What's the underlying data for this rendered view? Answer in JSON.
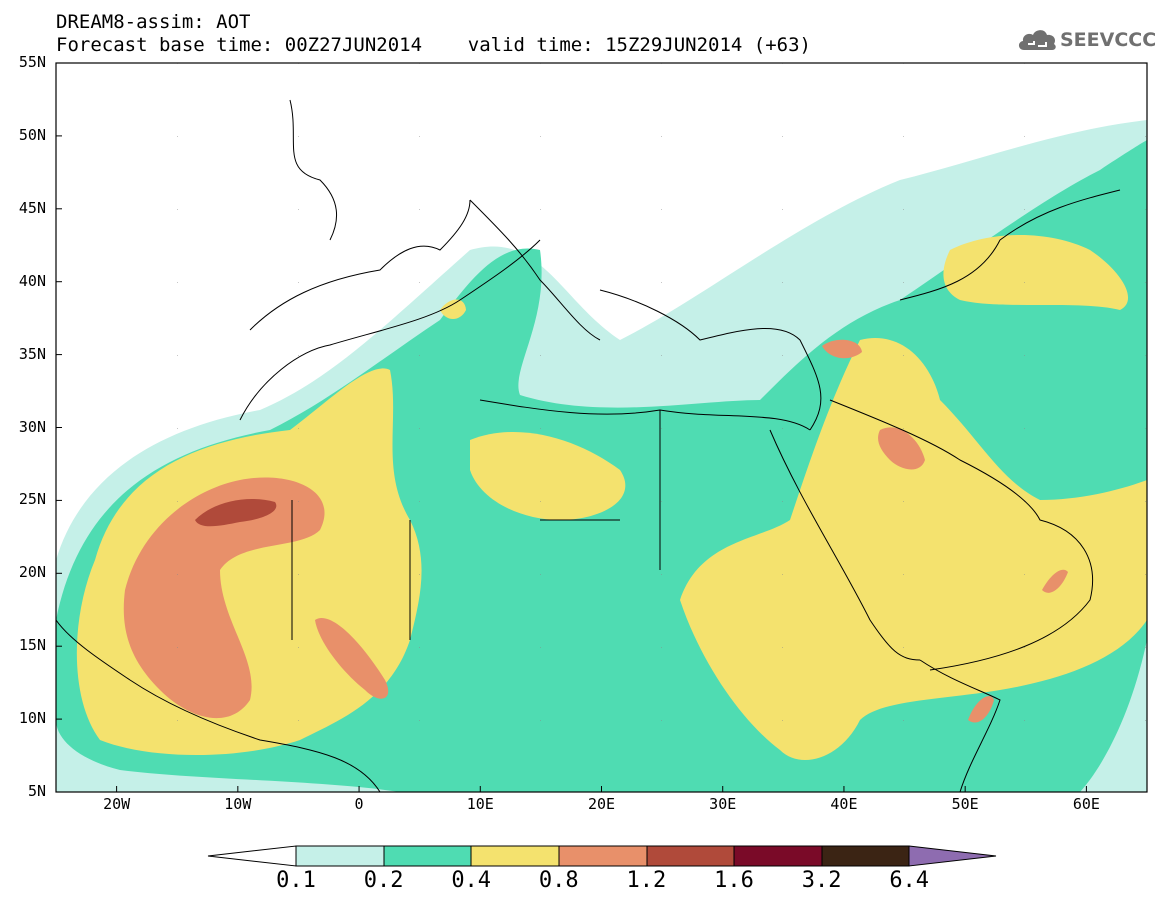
{
  "header": {
    "line1": "DREAM8-assim: AOT",
    "line2": "Forecast base time: 00Z27JUN2014    valid time: 15Z29JUN2014 (+63)"
  },
  "logo": {
    "text": "SEEVCCC",
    "icon": "cloud-icon"
  },
  "map": {
    "lat_labels": [
      "55N",
      "50N",
      "45N",
      "40N",
      "35N",
      "30N",
      "25N",
      "20N",
      "15N",
      "10N",
      "5N"
    ],
    "lon_labels": [
      "20W",
      "10W",
      "0",
      "10E",
      "20E",
      "30E",
      "40E",
      "50E",
      "60E"
    ],
    "lon_range": [
      -25,
      65
    ],
    "lat_range": [
      5,
      55
    ]
  },
  "colorbar": {
    "labels": [
      "0.1",
      "0.2",
      "0.4",
      "0.8",
      "1.2",
      "1.6",
      "3.2",
      "6.4"
    ],
    "colors": [
      "#ffffff",
      "#c5f0e8",
      "#4fdcb2",
      "#f4e26e",
      "#e8906a",
      "#b04a3a",
      "#7a0a28",
      "#3b2414",
      "#8e6cb0"
    ]
  }
}
